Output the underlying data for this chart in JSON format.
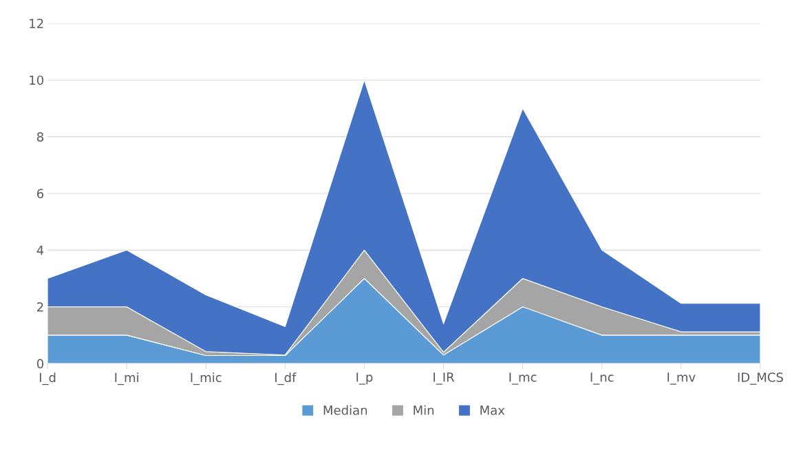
{
  "chart_data": {
    "type": "area",
    "stacked": true,
    "categories": [
      "I_d",
      "I_mi",
      "I_mic",
      "I_df",
      "I_p",
      "I_IR",
      "I_mc",
      "I_nc",
      "I_mv",
      "ID_MCS"
    ],
    "series": [
      {
        "name": "Median",
        "color": "#5b9bd5",
        "values": [
          1,
          1,
          0.28,
          0.28,
          3,
          0.3,
          2,
          1,
          1,
          1
        ]
      },
      {
        "name": "Min",
        "color": "#a5a5a5",
        "values": [
          1,
          1,
          0.14,
          0.02,
          1,
          0.1,
          1,
          1,
          0.12,
          0.12
        ]
      },
      {
        "name": "Max",
        "color": "#4472c4",
        "values": [
          1,
          2,
          2,
          1,
          6,
          1,
          6,
          2,
          1,
          1
        ]
      }
    ],
    "ylim": [
      0,
      12
    ],
    "yticks": [
      0,
      2,
      4,
      6,
      8,
      10,
      12
    ],
    "grid": "y",
    "legend": "bottom"
  }
}
